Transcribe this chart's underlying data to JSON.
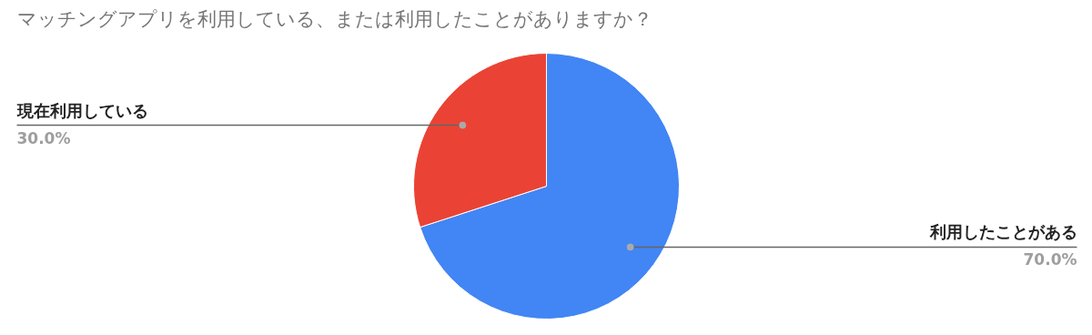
{
  "chart_data": {
    "type": "pie",
    "title": "マッチングアプリを利用している、または利用したことがありますか？",
    "categories": [
      "利用したことがある",
      "現在利用している"
    ],
    "values": [
      70,
      30
    ],
    "colors": [
      "#4285f4",
      "#ea4335"
    ],
    "value_labels": [
      "70.0%",
      "30.0%"
    ]
  }
}
